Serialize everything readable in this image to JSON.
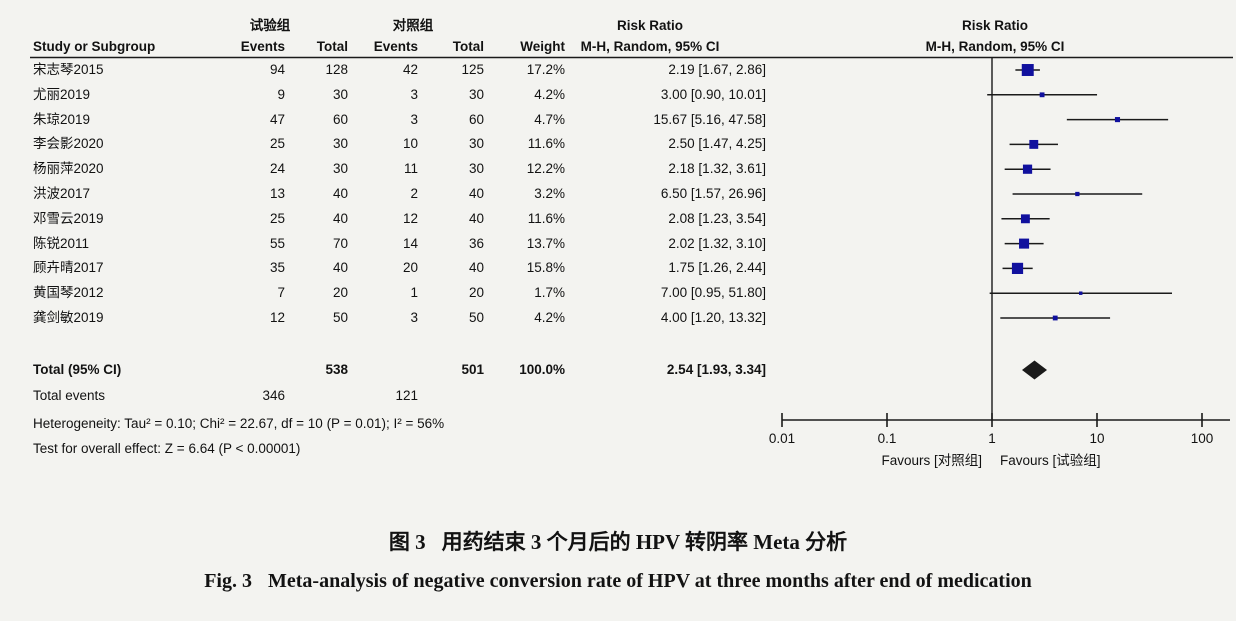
{
  "colors": {
    "background": "#f3f3f0",
    "text": "#121212",
    "marker_blue": "#10109e",
    "diamond_black": "#1a1a1a",
    "line": "#1a1a1a"
  },
  "table": {
    "group_experimental": "试验组",
    "group_control": "对照组",
    "col_study": "Study or Subgroup",
    "col_events_1": "Events",
    "col_total_1": "Total",
    "col_events_2": "Events",
    "col_total_2": "Total",
    "col_weight": "Weight",
    "rr_header_line1": "Risk Ratio",
    "rr_header_line2": "M-H, Random, 95% CI"
  },
  "plot": {
    "rr_header_line1": "Risk Ratio",
    "rr_header_line2": "M-H, Random, 95% CI"
  },
  "chart_data": {
    "type": "forest",
    "effect_measure": "Risk Ratio, M-H, Random, 95% CI",
    "x_scale": "log",
    "xlim": [
      0.01,
      100
    ],
    "x_ticks": [
      0.01,
      0.1,
      1,
      10,
      100
    ],
    "x_tick_labels": [
      "0.01",
      "0.1",
      "1",
      "10",
      "100"
    ],
    "favours_left": "Favours [对照组]",
    "favours_right": "Favours [试验组]",
    "studies": [
      {
        "name": "宋志琴2015",
        "events_exp": "94",
        "total_exp": "128",
        "events_ctrl": "42",
        "total_ctrl": "125",
        "weight": "17.2%",
        "weight_pct": 17.2,
        "rr": 2.19,
        "ci_low": 1.67,
        "ci_high": 2.86,
        "ci_text": "2.19 [1.67, 2.86]"
      },
      {
        "name": "尤丽2019",
        "events_exp": "9",
        "total_exp": "30",
        "events_ctrl": "3",
        "total_ctrl": "30",
        "weight": "4.2%",
        "weight_pct": 4.2,
        "rr": 3.0,
        "ci_low": 0.9,
        "ci_high": 10.01,
        "ci_text": "3.00 [0.90, 10.01]"
      },
      {
        "name": "朱琼2019",
        "events_exp": "47",
        "total_exp": "60",
        "events_ctrl": "3",
        "total_ctrl": "60",
        "weight": "4.7%",
        "weight_pct": 4.7,
        "rr": 15.67,
        "ci_low": 5.16,
        "ci_high": 47.58,
        "ci_text": "15.67 [5.16, 47.58]"
      },
      {
        "name": "李会影2020",
        "events_exp": "25",
        "total_exp": "30",
        "events_ctrl": "10",
        "total_ctrl": "30",
        "weight": "11.6%",
        "weight_pct": 11.6,
        "rr": 2.5,
        "ci_low": 1.47,
        "ci_high": 4.25,
        "ci_text": "2.50 [1.47, 4.25]"
      },
      {
        "name": "杨丽萍2020",
        "events_exp": "24",
        "total_exp": "30",
        "events_ctrl": "11",
        "total_ctrl": "30",
        "weight": "12.2%",
        "weight_pct": 12.2,
        "rr": 2.18,
        "ci_low": 1.32,
        "ci_high": 3.61,
        "ci_text": "2.18 [1.32, 3.61]"
      },
      {
        "name": "洪波2017",
        "events_exp": "13",
        "total_exp": "40",
        "events_ctrl": "2",
        "total_ctrl": "40",
        "weight": "3.2%",
        "weight_pct": 3.2,
        "rr": 6.5,
        "ci_low": 1.57,
        "ci_high": 26.96,
        "ci_text": "6.50 [1.57, 26.96]"
      },
      {
        "name": "邓雪云2019",
        "events_exp": "25",
        "total_exp": "40",
        "events_ctrl": "12",
        "total_ctrl": "40",
        "weight": "11.6%",
        "weight_pct": 11.6,
        "rr": 2.08,
        "ci_low": 1.23,
        "ci_high": 3.54,
        "ci_text": "2.08 [1.23, 3.54]"
      },
      {
        "name": "陈锐2011",
        "events_exp": "55",
        "total_exp": "70",
        "events_ctrl": "14",
        "total_ctrl": "36",
        "weight": "13.7%",
        "weight_pct": 13.7,
        "rr": 2.02,
        "ci_low": 1.32,
        "ci_high": 3.1,
        "ci_text": "2.02 [1.32, 3.10]"
      },
      {
        "name": "顾卉晴2017",
        "events_exp": "35",
        "total_exp": "40",
        "events_ctrl": "20",
        "total_ctrl": "40",
        "weight": "15.8%",
        "weight_pct": 15.8,
        "rr": 1.75,
        "ci_low": 1.26,
        "ci_high": 2.44,
        "ci_text": "1.75 [1.26, 2.44]"
      },
      {
        "name": "黄国琴2012",
        "events_exp": "7",
        "total_exp": "20",
        "events_ctrl": "1",
        "total_ctrl": "20",
        "weight": "1.7%",
        "weight_pct": 1.7,
        "rr": 7.0,
        "ci_low": 0.95,
        "ci_high": 51.8,
        "ci_text": "7.00 [0.95, 51.80]"
      },
      {
        "name": "龚剑敏2019",
        "events_exp": "12",
        "total_exp": "50",
        "events_ctrl": "3",
        "total_ctrl": "50",
        "weight": "4.2%",
        "weight_pct": 4.2,
        "rr": 4.0,
        "ci_low": 1.2,
        "ci_high": 13.32,
        "ci_text": "4.00 [1.20, 13.32]"
      }
    ],
    "total": {
      "label": "Total (95% CI)",
      "total_exp": "538",
      "total_ctrl": "501",
      "weight": "100.0%",
      "rr": 2.54,
      "ci_low": 1.93,
      "ci_high": 3.34,
      "ci_text": "2.54 [1.93, 3.34]"
    },
    "total_events": {
      "label": "Total events",
      "events_exp": "346",
      "events_ctrl": "121"
    },
    "heterogeneity": "Heterogeneity: Tau² = 0.10; Chi² = 22.67, df = 10 (P = 0.01); I² = 56%",
    "overall_effect": "Test for overall effect: Z = 6.64 (P < 0.00001)"
  },
  "caption": {
    "zh_prefix": "图 3",
    "zh_text": "用药结束 3 个月后的 HPV 转阴率 Meta 分析",
    "en_prefix": "Fig. 3",
    "en_text": "Meta-analysis of negative conversion rate of HPV at three months after end of medication"
  }
}
